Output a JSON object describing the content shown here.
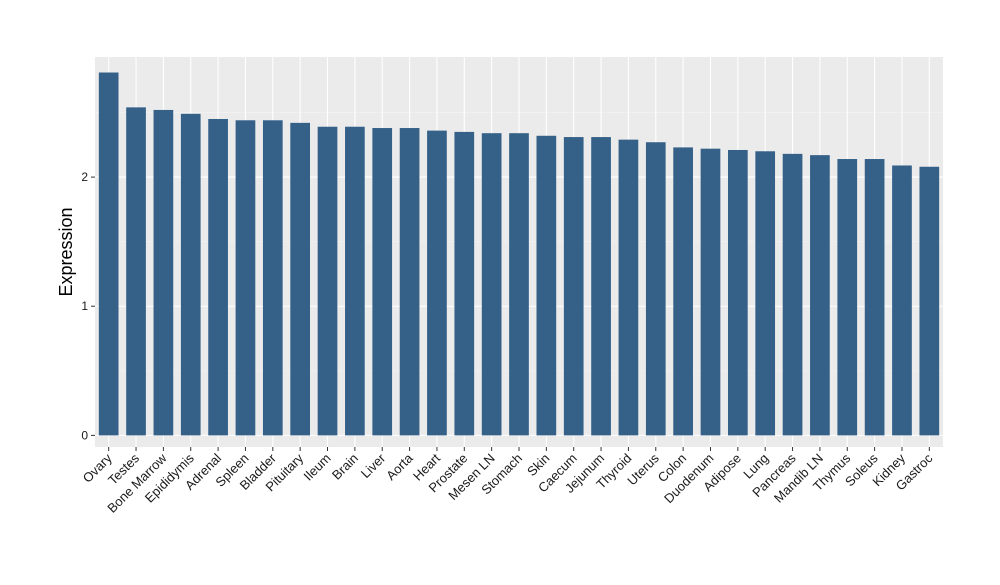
{
  "chart_data": {
    "type": "bar",
    "title": "",
    "xlabel": "",
    "ylabel": "Expression",
    "categories": [
      "Ovary",
      "Testes",
      "Bone Marrow",
      "Epididymis",
      "Adrenal",
      "Spleen",
      "Bladder",
      "Pituitary",
      "Ileum",
      "Brain",
      "Liver",
      "Aorta",
      "Heart",
      "Prostate",
      "Mesen LN",
      "Stomach",
      "Skin",
      "Caecum",
      "Jejunum",
      "Thyroid",
      "Uterus",
      "Colon",
      "Duodenum",
      "Adipose",
      "Lung",
      "Pancreas",
      "Mandib LN",
      "Thymus",
      "Soleus",
      "Kidney",
      "Gastroc"
    ],
    "values": [
      2.81,
      2.54,
      2.52,
      2.49,
      2.45,
      2.44,
      2.44,
      2.42,
      2.39,
      2.39,
      2.38,
      2.38,
      2.36,
      2.35,
      2.34,
      2.34,
      2.32,
      2.31,
      2.31,
      2.29,
      2.27,
      2.23,
      2.22,
      2.21,
      2.2,
      2.18,
      2.17,
      2.14,
      2.14,
      2.09,
      2.08
    ],
    "ylim": [
      -0.09,
      2.93
    ],
    "yticks": [
      0,
      1,
      2
    ],
    "grid": true,
    "legend": "none",
    "colors": {
      "bar": "#356189",
      "panel": "#ebebeb",
      "grid_major": "#ffffff",
      "grid_minor": "#f3f3f3"
    }
  }
}
